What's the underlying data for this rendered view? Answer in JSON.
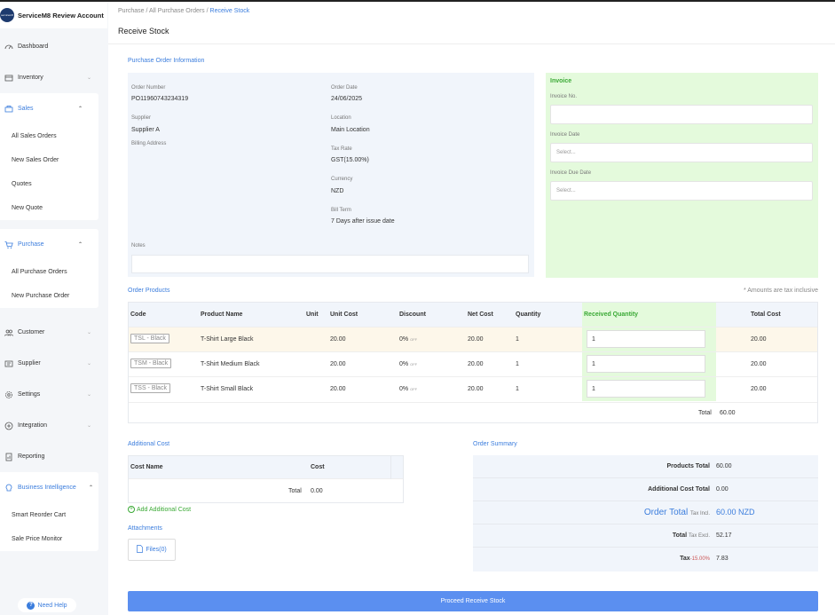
{
  "sidebar": {
    "brand": "ServiceM8 Review Account",
    "brand_logo": "servicem8",
    "items": [
      {
        "label": "Dashboard",
        "icon": "dashboard-icon"
      },
      {
        "label": "Inventory",
        "icon": "inventory-icon"
      },
      {
        "label": "Sales",
        "icon": "sales-icon"
      },
      {
        "label": "Purchase",
        "icon": "purchase-icon"
      },
      {
        "label": "Customer",
        "icon": "customer-icon"
      },
      {
        "label": "Supplier",
        "icon": "supplier-icon"
      },
      {
        "label": "Settings",
        "icon": "settings-icon"
      },
      {
        "label": "Integration",
        "icon": "integration-icon"
      },
      {
        "label": "Reporting",
        "icon": "reporting-icon"
      },
      {
        "label": "Business Intelligence",
        "icon": "bi-icon"
      }
    ],
    "sales_sub": [
      "All Sales Orders",
      "New Sales Order",
      "Quotes",
      "New Quote"
    ],
    "purchase_sub": [
      "All Purchase Orders",
      "New Purchase Order"
    ],
    "bi_sub": [
      "Smart Reorder Cart",
      "Sale Price Monitor"
    ],
    "need_help": "Need Help"
  },
  "header": {
    "breadcrumb": [
      "Purchase",
      "All Purchase Orders",
      "Receive Stock"
    ],
    "title": "Receive Stock"
  },
  "po_info": {
    "section_title": "Purchase Order Information",
    "order_number_label": "Order Number",
    "order_number": "PO11960743234319",
    "supplier_label": "Supplier",
    "supplier": "Supplier A",
    "billing_address_label": "Billing Address",
    "order_date_label": "Order Date",
    "order_date": "24/06/2025",
    "location_label": "Location",
    "location": "Main Location",
    "tax_rate_label": "Tax Rate",
    "tax_rate": "GST(15.00%)",
    "currency_label": "Currency",
    "currency": "NZD",
    "bill_term_label": "Bill Term",
    "bill_term": "7 Days after issue date",
    "notes_label": "Notes"
  },
  "invoice": {
    "title": "Invoice",
    "invoice_no_label": "Invoice No.",
    "invoice_date_label": "Invoice Date",
    "invoice_date_placeholder": "Select...",
    "invoice_due_label": "Invoice Due Date",
    "invoice_due_placeholder": "Select..."
  },
  "order_products": {
    "section_title": "Order Products",
    "tax_note": "* Amounts are tax inclusive",
    "headers": {
      "code": "Code",
      "product_name": "Product Name",
      "unit": "Unit",
      "unit_cost": "Unit Cost",
      "discount": "Discount",
      "net_cost": "Net Cost",
      "quantity": "Quantity",
      "received_quantity": "Received Quantity",
      "total_cost": "Total Cost"
    },
    "rows": [
      {
        "code": "TSL - Black",
        "name": "T-Shirt Large Black",
        "unit_cost": "20.00",
        "discount": "0%",
        "off": "OFF",
        "net_cost": "20.00",
        "quantity": "1",
        "received": "1",
        "total": "20.00"
      },
      {
        "code": "TSM - Black",
        "name": "T-Shirt Medium Black",
        "unit_cost": "20.00",
        "discount": "0%",
        "off": "OFF",
        "net_cost": "20.00",
        "quantity": "1",
        "received": "1",
        "total": "20.00"
      },
      {
        "code": "TSS - Black",
        "name": "T-Shirt Small Black",
        "unit_cost": "20.00",
        "discount": "0%",
        "off": "OFF",
        "net_cost": "20.00",
        "quantity": "1",
        "received": "1",
        "total": "20.00"
      }
    ],
    "total_label": "Total",
    "total_value": "60.00"
  },
  "additional_cost": {
    "section_title": "Additional Cost",
    "cost_name_header": "Cost Name",
    "cost_header": "Cost",
    "total_label": "Total",
    "total_value": "0.00",
    "add_label": "Add Additional Cost"
  },
  "attachments": {
    "section_title": "Attachments",
    "files_label": "Files(0)"
  },
  "order_summary": {
    "section_title": "Order Summary",
    "products_total_label": "Products Total",
    "products_total": "60.00",
    "additional_cost_total_label": "Additional Cost Total",
    "additional_cost_total": "0.00",
    "order_total_label": "Order Total",
    "order_total_suffix": "Tax Incl.",
    "order_total": "60.00 NZD",
    "total_label": "Total",
    "total_suffix": "Tax Excl.",
    "total_excl": "52.17",
    "tax_label": "Tax",
    "tax_suffix": "-15.00%",
    "tax_value": "7.83"
  },
  "proceed_button": "Proceed Receive Stock",
  "colors": {
    "accent": "#3b7ddd",
    "green": "#3aa935",
    "button": "#5b8ff0"
  }
}
